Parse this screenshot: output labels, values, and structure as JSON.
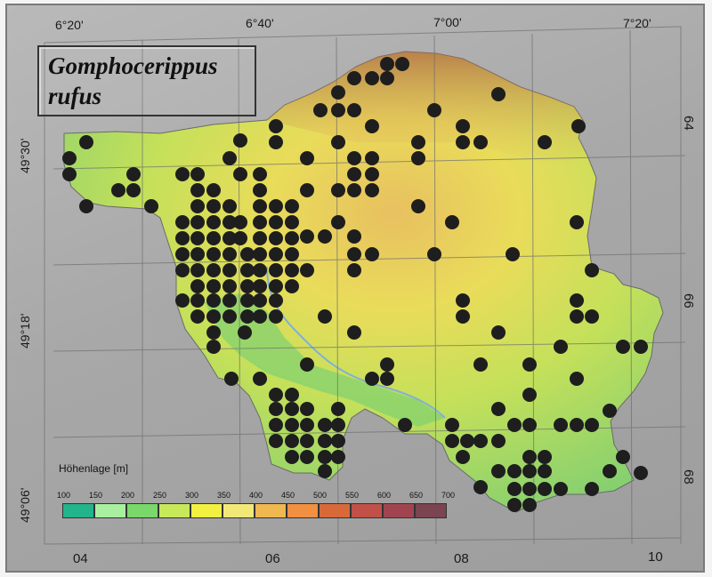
{
  "title": {
    "line1": "Gomphocerippus",
    "line2": "rufus"
  },
  "top_coords": [
    "6°20'",
    "6°40'",
    "7°00'",
    "7°20'"
  ],
  "left_coords": [
    "49°30'",
    "49°18'",
    "49°06'"
  ],
  "bottom_grid": [
    "04",
    "06",
    "08",
    "10"
  ],
  "right_grid": [
    "64",
    "66",
    "68"
  ],
  "legend": {
    "title": "Höhenlage [m]",
    "ticks": [
      "100",
      "150",
      "200",
      "250",
      "300",
      "350",
      "400",
      "450",
      "500",
      "550",
      "600",
      "650",
      "700"
    ],
    "colors": [
      "#22b48a",
      "#a8f0a0",
      "#7ad86a",
      "#c6e85a",
      "#f2f040",
      "#f2e878",
      "#f0b850",
      "#f09040",
      "#d86a3a",
      "#c05048",
      "#a04550",
      "#7a4450",
      "#4a3442"
    ]
  },
  "colors": {
    "dot": "#1e1e1e",
    "frame": "#a9a9a9",
    "grid_line": "#6e6e6e"
  }
}
